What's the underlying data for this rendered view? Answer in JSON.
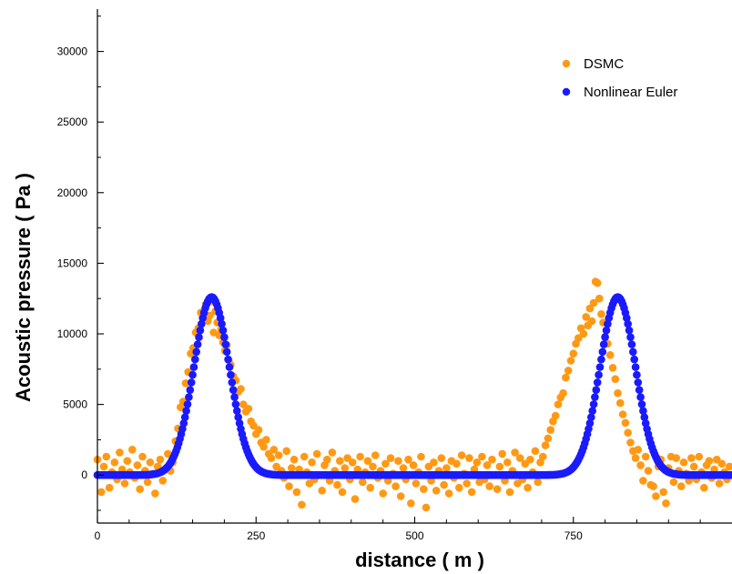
{
  "colors": {
    "dsmc": "#ff9914",
    "euler": "#1a1aff",
    "axis": "#000000",
    "background": "#ffffff"
  },
  "chart_data": {
    "type": "scatter",
    "title": "",
    "xlabel": "distance ( m )",
    "ylabel": "Acoustic pressure ( Pa )",
    "xlim": [
      0,
      1000
    ],
    "ylim": [
      -3400,
      33000
    ],
    "x_ticks": [
      0,
      250,
      500,
      750
    ],
    "x_tick_labels": [
      "0",
      "250",
      "500",
      "750"
    ],
    "y_ticks": [
      0,
      5000,
      10000,
      15000,
      20000,
      25000,
      30000
    ],
    "y_tick_labels": [
      "0",
      "5000",
      "10000",
      "15000",
      "20000",
      "25000",
      "30000"
    ],
    "grid": false,
    "legend_position": "top-right",
    "series": [
      {
        "name": "DSMC",
        "color": "#ff9914",
        "points": [
          [
            0,
            1100
          ],
          [
            6,
            -1200
          ],
          [
            10,
            600
          ],
          [
            14,
            1300
          ],
          [
            19,
            -900
          ],
          [
            23,
            200
          ],
          [
            27,
            900
          ],
          [
            31,
            -300
          ],
          [
            35,
            1600
          ],
          [
            39,
            400
          ],
          [
            43,
            -600
          ],
          [
            47,
            1000
          ],
          [
            51,
            200
          ],
          [
            55,
            1800
          ],
          [
            59,
            -200
          ],
          [
            63,
            700
          ],
          [
            67,
            -1000
          ],
          [
            71,
            1300
          ],
          [
            75,
            300
          ],
          [
            79,
            -500
          ],
          [
            83,
            900
          ],
          [
            87,
            100
          ],
          [
            91,
            -1300
          ],
          [
            95,
            600
          ],
          [
            99,
            1100
          ],
          [
            103,
            -400
          ],
          [
            107,
            400
          ],
          [
            111,
            1500
          ],
          [
            115,
            300
          ],
          [
            119,
            900
          ],
          [
            123,
            2400
          ],
          [
            127,
            3300
          ],
          [
            131,
            4800
          ],
          [
            135,
            5200
          ],
          [
            139,
            6500
          ],
          [
            143,
            7300
          ],
          [
            147,
            8600
          ],
          [
            151,
            9000
          ],
          [
            155,
            10100
          ],
          [
            159,
            10400
          ],
          [
            163,
            11500
          ],
          [
            167,
            11000
          ],
          [
            171,
            12100
          ],
          [
            174,
            10900
          ],
          [
            177,
            11300
          ],
          [
            180,
            12300
          ],
          [
            183,
            10100
          ],
          [
            186,
            11600
          ],
          [
            189,
            10800
          ],
          [
            192,
            9900
          ],
          [
            195,
            10300
          ],
          [
            198,
            9400
          ],
          [
            201,
            8800
          ],
          [
            204,
            9200
          ],
          [
            207,
            8100
          ],
          [
            210,
            7800
          ],
          [
            214,
            7000
          ],
          [
            218,
            6700
          ],
          [
            222,
            5900
          ],
          [
            226,
            6100
          ],
          [
            230,
            5000
          ],
          [
            234,
            4500
          ],
          [
            238,
            4700
          ],
          [
            242,
            3800
          ],
          [
            246,
            3500
          ],
          [
            250,
            2900
          ],
          [
            254,
            3200
          ],
          [
            258,
            2300
          ],
          [
            262,
            2000
          ],
          [
            266,
            2500
          ],
          [
            270,
            1500
          ],
          [
            274,
            1200
          ],
          [
            278,
            1800
          ],
          [
            282,
            600
          ],
          [
            286,
            1400
          ],
          [
            290,
            300
          ],
          [
            294,
            -200
          ],
          [
            298,
            1700
          ],
          [
            302,
            -800
          ],
          [
            306,
            500
          ],
          [
            310,
            1100
          ],
          [
            314,
            -1200
          ],
          [
            318,
            400
          ],
          [
            322,
            -2100
          ],
          [
            326,
            1300
          ],
          [
            330,
            200
          ],
          [
            334,
            -600
          ],
          [
            338,
            900
          ],
          [
            342,
            -300
          ],
          [
            346,
            1500
          ],
          [
            350,
            0
          ],
          [
            354,
            -1100
          ],
          [
            358,
            700
          ],
          [
            362,
            1100
          ],
          [
            366,
            -400
          ],
          [
            370,
            1600
          ],
          [
            374,
            300
          ],
          [
            378,
            -700
          ],
          [
            382,
            1000
          ],
          [
            386,
            -1200
          ],
          [
            390,
            500
          ],
          [
            394,
            1200
          ],
          [
            398,
            -300
          ],
          [
            402,
            900
          ],
          [
            406,
            -1700
          ],
          [
            410,
            400
          ],
          [
            414,
            1300
          ],
          [
            418,
            -500
          ],
          [
            422,
            200
          ],
          [
            426,
            1000
          ],
          [
            430,
            -900
          ],
          [
            434,
            600
          ],
          [
            438,
            1400
          ],
          [
            442,
            -200
          ],
          [
            446,
            300
          ],
          [
            450,
            -1300
          ],
          [
            454,
            800
          ],
          [
            458,
            -400
          ],
          [
            462,
            1200
          ],
          [
            466,
            100
          ],
          [
            470,
            -800
          ],
          [
            474,
            1000
          ],
          [
            478,
            -1500
          ],
          [
            482,
            500
          ],
          [
            486,
            -300
          ],
          [
            490,
            1100
          ],
          [
            494,
            -2000
          ],
          [
            498,
            700
          ],
          [
            502,
            -600
          ],
          [
            506,
            200
          ],
          [
            510,
            1300
          ],
          [
            514,
            -1000
          ],
          [
            518,
            -2300
          ],
          [
            522,
            600
          ],
          [
            526,
            -400
          ],
          [
            530,
            900
          ],
          [
            534,
            -1100
          ],
          [
            538,
            300
          ],
          [
            542,
            1200
          ],
          [
            546,
            -700
          ],
          [
            550,
            500
          ],
          [
            554,
            -1300
          ],
          [
            558,
            1000
          ],
          [
            562,
            -200
          ],
          [
            566,
            800
          ],
          [
            570,
            -900
          ],
          [
            574,
            1400
          ],
          [
            578,
            100
          ],
          [
            582,
            -600
          ],
          [
            586,
            1200
          ],
          [
            590,
            -1200
          ],
          [
            594,
            400
          ],
          [
            598,
            900
          ],
          [
            602,
            -500
          ],
          [
            606,
            1300
          ],
          [
            610,
            -300
          ],
          [
            614,
            700
          ],
          [
            618,
            -800
          ],
          [
            622,
            1100
          ],
          [
            626,
            0
          ],
          [
            630,
            -1000
          ],
          [
            634,
            600
          ],
          [
            638,
            1500
          ],
          [
            642,
            -400
          ],
          [
            646,
            900
          ],
          [
            650,
            -1200
          ],
          [
            654,
            300
          ],
          [
            658,
            1600
          ],
          [
            662,
            -600
          ],
          [
            666,
            1200
          ],
          [
            670,
            -300
          ],
          [
            674,
            800
          ],
          [
            678,
            -900
          ],
          [
            682,
            1100
          ],
          [
            686,
            200
          ],
          [
            690,
            1700
          ],
          [
            694,
            -500
          ],
          [
            698,
            900
          ],
          [
            702,
            1300
          ],
          [
            706,
            2100
          ],
          [
            710,
            2600
          ],
          [
            714,
            3200
          ],
          [
            718,
            3800
          ],
          [
            722,
            4200
          ],
          [
            726,
            5000
          ],
          [
            730,
            5500
          ],
          [
            734,
            5800
          ],
          [
            738,
            6900
          ],
          [
            742,
            7400
          ],
          [
            746,
            8100
          ],
          [
            750,
            8600
          ],
          [
            754,
            9300
          ],
          [
            758,
            9700
          ],
          [
            762,
            10400
          ],
          [
            766,
            10000
          ],
          [
            770,
            11200
          ],
          [
            773,
            10600
          ],
          [
            776,
            11800
          ],
          [
            779,
            10900
          ],
          [
            782,
            12200
          ],
          [
            785,
            13700
          ],
          [
            788,
            13600
          ],
          [
            791,
            12500
          ],
          [
            794,
            11400
          ],
          [
            797,
            10800
          ],
          [
            800,
            9800
          ],
          [
            804,
            9300
          ],
          [
            808,
            8500
          ],
          [
            812,
            7600
          ],
          [
            816,
            6800
          ],
          [
            820,
            5800
          ],
          [
            824,
            5100
          ],
          [
            828,
            4300
          ],
          [
            832,
            3700
          ],
          [
            836,
            3000
          ],
          [
            840,
            2300
          ],
          [
            844,
            1700
          ],
          [
            848,
            1200
          ],
          [
            852,
            1800
          ],
          [
            856,
            700
          ],
          [
            860,
            -400
          ],
          [
            864,
            1300
          ],
          [
            868,
            300
          ],
          [
            872,
            -700
          ],
          [
            876,
            -800
          ],
          [
            880,
            -1500
          ],
          [
            884,
            600
          ],
          [
            888,
            1100
          ],
          [
            892,
            -1200
          ],
          [
            896,
            -2000
          ],
          [
            900,
            500
          ],
          [
            904,
            1300
          ],
          [
            908,
            -500
          ],
          [
            912,
            1200
          ],
          [
            916,
            300
          ],
          [
            920,
            -800
          ],
          [
            924,
            900
          ],
          [
            928,
            100
          ],
          [
            932,
            -400
          ],
          [
            936,
            1200
          ],
          [
            940,
            600
          ],
          [
            944,
            -300
          ],
          [
            948,
            1300
          ],
          [
            952,
            200
          ],
          [
            956,
            -900
          ],
          [
            960,
            700
          ],
          [
            964,
            1000
          ],
          [
            968,
            -200
          ],
          [
            972,
            400
          ],
          [
            976,
            1100
          ],
          [
            980,
            -600
          ],
          [
            984,
            800
          ],
          [
            988,
            200
          ],
          [
            992,
            -300
          ],
          [
            996,
            600
          ]
        ]
      },
      {
        "name": "Nonlinear Euler",
        "color": "#1a1aff",
        "peaks": [
          {
            "center": 180,
            "amplitude": 12600,
            "width": 28
          },
          {
            "center": 820,
            "amplitude": 12600,
            "width": 28
          }
        ],
        "x_range": [
          0,
          1000
        ],
        "x_step": 2
      }
    ]
  }
}
